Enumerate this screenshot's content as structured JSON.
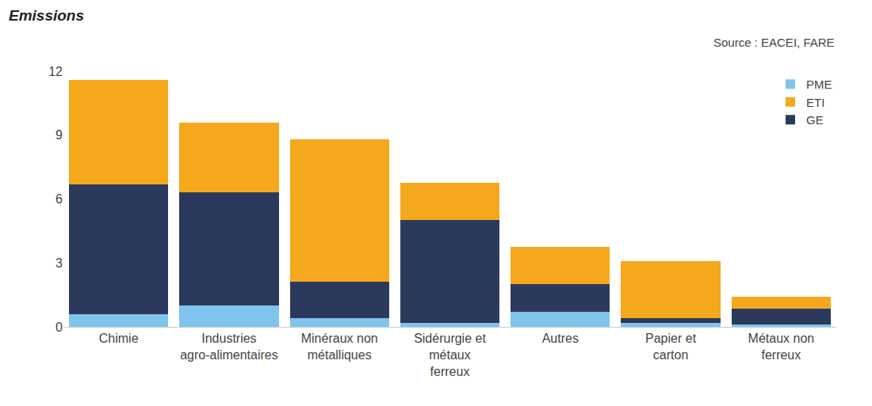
{
  "chart_data": {
    "type": "bar",
    "title": "Emissions",
    "annotations": [
      "Source : EACEI, FARE"
    ],
    "categories": [
      "Chimie",
      "Industries agro-alimentaires",
      "Minéraux non métalliques",
      "Sidérurgie et métaux ferreux",
      "Autres",
      "Papier et carton",
      "Métaux non ferreux"
    ],
    "series": [
      {
        "name": "PME",
        "color": "#7fc4ec",
        "values": [
          0.6,
          1.0,
          0.4,
          0.2,
          0.7,
          0.2,
          0.1
        ]
      },
      {
        "name": "GE",
        "color": "#2b3a5c",
        "values": [
          6.1,
          5.3,
          1.7,
          4.8,
          1.3,
          0.2,
          0.75
        ]
      },
      {
        "name": "ETI",
        "color": "#f5a81c",
        "values": [
          4.9,
          3.3,
          6.7,
          1.75,
          1.75,
          2.7,
          0.55
        ]
      }
    ],
    "stacked": true,
    "ylim": [
      0,
      12
    ],
    "yticks": [
      0,
      3,
      6,
      9,
      12
    ],
    "grid": false,
    "legend": "top-right"
  }
}
